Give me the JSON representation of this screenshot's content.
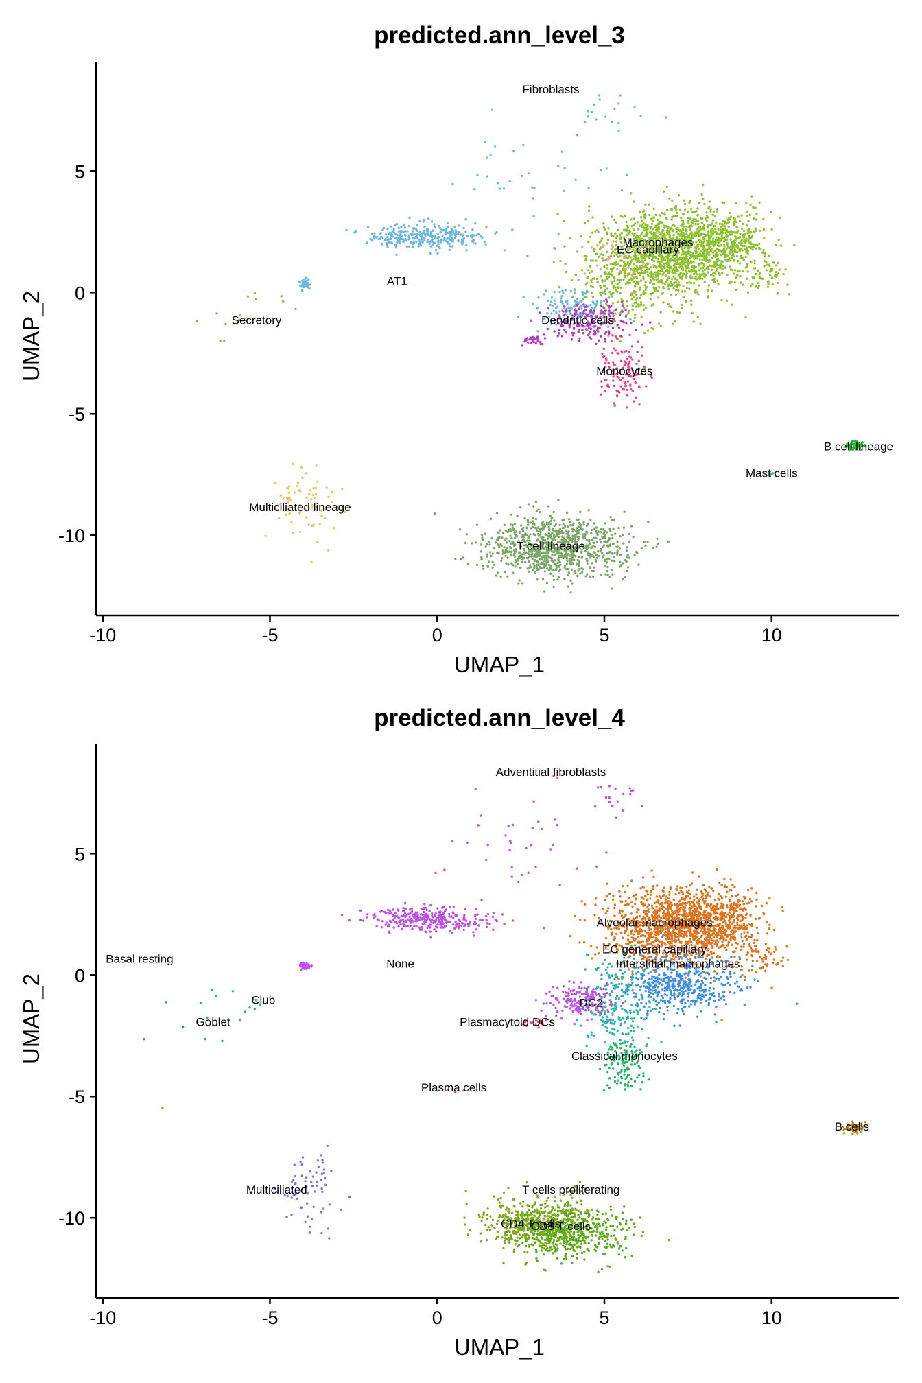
{
  "chart_data": [
    {
      "type": "scatter",
      "title": "predicted.ann_level_3",
      "xlabel": "UMAP_1",
      "ylabel": "UMAP_2",
      "xlim": [
        -10.2,
        13.8
      ],
      "ylim": [
        -13.3,
        9.5
      ],
      "xticks": [
        -10,
        -5,
        0,
        5,
        10
      ],
      "yticks": [
        -10,
        -5,
        0,
        5
      ],
      "xtick_labels": [
        "-10",
        "-5",
        "0",
        "5",
        "10"
      ],
      "ytick_labels": [
        "-10",
        "-5",
        "0",
        "5"
      ],
      "grid": false,
      "legend": "none",
      "series": [
        {
          "name": "Macrophages",
          "color": "#8DC32E",
          "clusters": [
            {
              "cx": 7.0,
              "cy": 1.7,
              "sx": 1.1,
              "sy": 0.9,
              "n": 1400
            },
            {
              "cx": 8.6,
              "cy": 2.2,
              "sx": 0.6,
              "sy": 0.6,
              "n": 300
            },
            {
              "cx": 5.7,
              "cy": 0.2,
              "sx": 0.8,
              "sy": 1.0,
              "n": 260
            },
            {
              "cx": 9.7,
              "cy": 0.7,
              "sx": 0.4,
              "sy": 0.4,
              "n": 60
            }
          ]
        },
        {
          "name": "EC capillary",
          "color": "#F29E8B",
          "clusters": [
            {
              "cx": 5.5,
              "cy": 1.5,
              "sx": 0.6,
              "sy": 0.5,
              "n": 30
            }
          ]
        },
        {
          "name": "Fibroblasts",
          "color": "#6BB8DF",
          "clusters": [
            {
              "cx": 5.3,
              "cy": 7.4,
              "sx": 0.5,
              "sy": 0.4,
              "n": 18
            },
            {
              "cx": 2.5,
              "cy": 4.8,
              "sx": 1.3,
              "sy": 1.1,
              "n": 36
            }
          ]
        },
        {
          "name": "AT1",
          "color": "#6BB8DF",
          "clusters": [
            {
              "cx": -0.4,
              "cy": 2.3,
              "sx": 0.9,
              "sy": 0.25,
              "n": 320
            },
            {
              "cx": -3.95,
              "cy": 0.35,
              "sx": 0.08,
              "sy": 0.08,
              "n": 40
            },
            {
              "cx": 4.1,
              "cy": -0.6,
              "sx": 0.6,
              "sy": 0.4,
              "n": 130
            }
          ]
        },
        {
          "name": "Dendritic cells",
          "color": "#B338C7",
          "clusters": [
            {
              "cx": 4.6,
              "cy": -1.2,
              "sx": 0.6,
              "sy": 0.4,
              "n": 180
            },
            {
              "cx": 2.9,
              "cy": -2.0,
              "sx": 0.2,
              "sy": 0.1,
              "n": 30
            }
          ]
        },
        {
          "name": "Monocytes",
          "color": "#F0428A",
          "clusters": [
            {
              "cx": 5.6,
              "cy": -3.3,
              "sx": 0.35,
              "sy": 0.6,
              "n": 120
            }
          ]
        },
        {
          "name": "Secretory",
          "color": "#C9945A",
          "clusters": [
            {
              "cx": -5.6,
              "cy": -1.1,
              "sx": 0.9,
              "sy": 0.8,
              "n": 14
            }
          ]
        },
        {
          "name": "Multiciliated lineage",
          "color": "#E5C859",
          "clusters": [
            {
              "cx": -3.9,
              "cy": -8.9,
              "sx": 0.5,
              "sy": 0.8,
              "n": 70
            }
          ]
        },
        {
          "name": "T cell lineage",
          "color": "#7AA866",
          "clusters": [
            {
              "cx": 3.5,
              "cy": -10.5,
              "sx": 1.1,
              "sy": 0.6,
              "n": 950
            }
          ]
        },
        {
          "name": "B cell lineage",
          "color": "#27B836",
          "clusters": [
            {
              "cx": 12.5,
              "cy": -6.3,
              "sx": 0.12,
              "sy": 0.1,
              "n": 70
            }
          ]
        },
        {
          "name": "Mast cells",
          "color": "#2FB5A5",
          "clusters": [
            {
              "cx": 9.95,
              "cy": -7.5,
              "sx": 0.06,
              "sy": 0.06,
              "n": 3
            }
          ]
        }
      ],
      "labels": [
        {
          "text": "Fibroblasts",
          "x": 3.4,
          "y": 8.2
        },
        {
          "text": "Macrophages",
          "x": 6.6,
          "y": 1.9
        },
        {
          "text": "EC capillary",
          "x": 6.3,
          "y": 1.6
        },
        {
          "text": "AT1",
          "x": -1.2,
          "y": 0.3
        },
        {
          "text": "Secretory",
          "x": -5.4,
          "y": -1.3
        },
        {
          "text": "Dendritic cells",
          "x": 4.2,
          "y": -1.3
        },
        {
          "text": "Monocytes",
          "x": 5.6,
          "y": -3.4
        },
        {
          "text": "B cell lineage",
          "x": 12.6,
          "y": -6.5
        },
        {
          "text": "Mast cells",
          "x": 10.0,
          "y": -7.6
        },
        {
          "text": "Multiciliated lineage",
          "x": -4.1,
          "y": -9.0
        },
        {
          "text": "T cell lineage",
          "x": 3.4,
          "y": -10.6
        }
      ]
    },
    {
      "type": "scatter",
      "title": "predicted.ann_level_4",
      "xlabel": "UMAP_1",
      "ylabel": "UMAP_2",
      "xlim": [
        -10.2,
        13.8
      ],
      "ylim": [
        -13.3,
        9.5
      ],
      "xticks": [
        -10,
        -5,
        0,
        5,
        10
      ],
      "yticks": [
        -10,
        -5,
        0,
        5
      ],
      "xtick_labels": [
        "-10",
        "-5",
        "0",
        "5",
        "10"
      ],
      "ytick_labels": [
        "-10",
        "-5",
        "0",
        "5"
      ],
      "grid": false,
      "legend": "none",
      "series": [
        {
          "name": "Alveolar macrophages",
          "color": "#E07520",
          "clusters": [
            {
              "cx": 7.1,
              "cy": 2.0,
              "sx": 1.0,
              "sy": 0.8,
              "n": 1300
            },
            {
              "cx": 8.6,
              "cy": 2.2,
              "sx": 0.6,
              "sy": 0.6,
              "n": 300
            },
            {
              "cx": 9.7,
              "cy": 0.7,
              "sx": 0.4,
              "sy": 0.4,
              "n": 60
            }
          ]
        },
        {
          "name": "Interstitial macrophages",
          "color": "#3D8FE6",
          "clusters": [
            {
              "cx": 7.2,
              "cy": -0.4,
              "sx": 0.9,
              "sy": 0.6,
              "n": 500
            }
          ]
        },
        {
          "name": "EC general capillary",
          "color": "#2CB8A8",
          "clusters": [
            {
              "cx": 5.3,
              "cy": -1.3,
              "sx": 0.5,
              "sy": 0.9,
              "n": 220
            }
          ]
        },
        {
          "name": "Classical monocytes",
          "color": "#22B565",
          "clusters": [
            {
              "cx": 5.6,
              "cy": -3.6,
              "sx": 0.3,
              "sy": 0.5,
              "n": 130
            }
          ]
        },
        {
          "name": "DC2",
          "color": "#C050E8",
          "clusters": [
            {
              "cx": 4.3,
              "cy": -1.1,
              "sx": 0.5,
              "sy": 0.35,
              "n": 170
            }
          ]
        },
        {
          "name": "Plasmacytoid DCs",
          "color": "#E8557A",
          "clusters": [
            {
              "cx": 2.9,
              "cy": -2.0,
              "sx": 0.2,
              "sy": 0.1,
              "n": 20
            }
          ]
        },
        {
          "name": "None",
          "color": "#C050E8",
          "clusters": [
            {
              "cx": -0.4,
              "cy": 2.3,
              "sx": 0.9,
              "sy": 0.25,
              "n": 320
            },
            {
              "cx": -3.95,
              "cy": 0.35,
              "sx": 0.08,
              "sy": 0.08,
              "n": 40
            },
            {
              "cx": 5.3,
              "cy": 7.4,
              "sx": 0.5,
              "sy": 0.4,
              "n": 18
            },
            {
              "cx": 2.5,
              "cy": 4.8,
              "sx": 1.3,
              "sy": 1.1,
              "n": 36
            }
          ]
        },
        {
          "name": "Adventitial fibroblasts",
          "color": "#E8557A",
          "clusters": [
            {
              "cx": 3.5,
              "cy": 8.2,
              "sx": 0.1,
              "sy": 0.1,
              "n": 2
            }
          ]
        },
        {
          "name": "Club",
          "color": "#2BAA95",
          "clusters": [
            {
              "cx": -5.6,
              "cy": -1.1,
              "sx": 0.8,
              "sy": 0.7,
              "n": 12
            }
          ]
        },
        {
          "name": "Goblet",
          "color": "#2E8CC6",
          "clusters": [
            {
              "cx": -6.6,
              "cy": -2.2,
              "sx": 0.8,
              "sy": 0.8,
              "n": 5
            }
          ]
        },
        {
          "name": "Basal resting",
          "color": "#8FA336",
          "clusters": [
            {
              "cx": -8.2,
              "cy": -5.4,
              "sx": 0.05,
              "sy": 0.05,
              "n": 1
            }
          ]
        },
        {
          "name": "Multiciliated",
          "color": "#8C6CE0",
          "clusters": [
            {
              "cx": -3.9,
              "cy": -8.9,
              "sx": 0.5,
              "sy": 0.8,
              "n": 70
            }
          ]
        },
        {
          "name": "Plasma cells",
          "color": "#D63F8F",
          "clusters": [
            {
              "cx": 0.6,
              "cy": -4.7,
              "sx": 0.2,
              "sy": 0.1,
              "n": 3
            }
          ]
        },
        {
          "name": "CD4 T cells",
          "color": "#82A81C",
          "clusters": [
            {
              "cx": 3.0,
              "cy": -10.3,
              "sx": 0.8,
              "sy": 0.5,
              "n": 550
            }
          ]
        },
        {
          "name": "CD8 T cells",
          "color": "#5AAE1C",
          "clusters": [
            {
              "cx": 4.0,
              "cy": -10.6,
              "sx": 0.9,
              "sy": 0.55,
              "n": 450
            }
          ]
        },
        {
          "name": "T cells proliferating",
          "color": "#7F9A3C",
          "clusters": [
            {
              "cx": 4.1,
              "cy": -8.9,
              "sx": 0.2,
              "sy": 0.15,
              "n": 12
            }
          ]
        },
        {
          "name": "B cells",
          "color": "#C08A1A",
          "clusters": [
            {
              "cx": 12.5,
              "cy": -6.3,
              "sx": 0.12,
              "sy": 0.1,
              "n": 70
            }
          ]
        }
      ],
      "labels": [
        {
          "text": "Adventitial fibroblasts",
          "x": 3.4,
          "y": 8.2
        },
        {
          "text": "Alveolar macrophages",
          "x": 6.5,
          "y": 2.0
        },
        {
          "text": "EC general capillary",
          "x": 6.5,
          "y": 0.9
        },
        {
          "text": "Interstitial macrophages",
          "x": 7.2,
          "y": 0.3
        },
        {
          "text": "Basal resting",
          "x": -8.9,
          "y": 0.5
        },
        {
          "text": "None",
          "x": -1.1,
          "y": 0.3
        },
        {
          "text": "Club",
          "x": -5.2,
          "y": -1.2
        },
        {
          "text": "DC2",
          "x": 4.6,
          "y": -1.3
        },
        {
          "text": "Goblet",
          "x": -6.7,
          "y": -2.1
        },
        {
          "text": "Plasmacytoid DCs",
          "x": 2.1,
          "y": -2.1
        },
        {
          "text": "Classical monocytes",
          "x": 5.6,
          "y": -3.5
        },
        {
          "text": "Plasma cells",
          "x": 0.5,
          "y": -4.8
        },
        {
          "text": "B cells",
          "x": 12.4,
          "y": -6.4
        },
        {
          "text": "Multiciliated",
          "x": -4.8,
          "y": -9.0
        },
        {
          "text": "T cells proliferating",
          "x": 4.0,
          "y": -9.0
        },
        {
          "text": "CD4 T cells",
          "x": 2.8,
          "y": -10.4
        },
        {
          "text": "CD8 T cells",
          "x": 3.7,
          "y": -10.5
        }
      ]
    }
  ]
}
